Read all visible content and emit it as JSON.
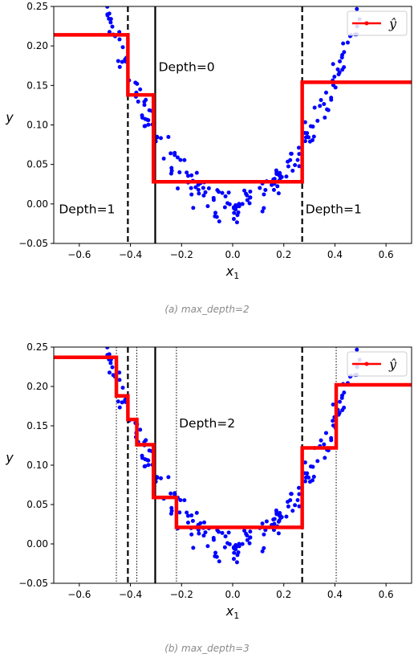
{
  "chart_data": [
    {
      "type": "scatter",
      "caption": "(a) max_depth=2",
      "xlabel": "x",
      "xlabel_sub": "1",
      "ylabel": "y",
      "xlim": [
        -0.7,
        0.7
      ],
      "ylim": [
        -0.05,
        0.25
      ],
      "xticks": [
        -0.6,
        -0.4,
        -0.2,
        0.0,
        0.2,
        0.4,
        0.6
      ],
      "xtick_labels": [
        "−0.6",
        "−0.4",
        "−0.2",
        "0.0",
        "0.2",
        "0.4",
        "0.6"
      ],
      "yticks": [
        -0.05,
        0.0,
        0.05,
        0.1,
        0.15,
        0.2,
        0.25
      ],
      "ytick_labels": [
        "−0.05",
        "0.00",
        "0.05",
        "0.10",
        "0.15",
        "0.20",
        "0.25"
      ],
      "legend": {
        "entries": [
          "ŷ"
        ],
        "placement": "top-right"
      },
      "series": [
        {
          "name": "ŷ",
          "kind": "step",
          "color": "#ff0000",
          "steps": [
            {
              "x0": -0.7,
              "x1": -0.41,
              "y": 0.214
            },
            {
              "x0": -0.41,
              "x1": -0.31,
              "y": 0.138
            },
            {
              "x0": -0.31,
              "x1": 0.272,
              "y": 0.028
            },
            {
              "x0": 0.272,
              "x1": 0.7,
              "y": 0.154
            }
          ]
        }
      ],
      "splits": [
        {
          "x": -0.303,
          "style": "solid"
        },
        {
          "x": -0.41,
          "style": "dashed"
        },
        {
          "x": 0.272,
          "style": "dashed"
        }
      ],
      "annotations": [
        {
          "text": "Depth=0",
          "x": -0.29,
          "y": 0.168
        },
        {
          "text": "Depth=1",
          "x": -0.68,
          "y": -0.012
        },
        {
          "text": "Depth=1",
          "x": 0.285,
          "y": -0.012
        }
      ],
      "points_color": "#0000ff"
    },
    {
      "type": "scatter",
      "caption": "(b) max_depth=3",
      "xlabel": "x",
      "xlabel_sub": "1",
      "ylabel": "y",
      "xlim": [
        -0.7,
        0.7
      ],
      "ylim": [
        -0.05,
        0.25
      ],
      "xticks": [
        -0.6,
        -0.4,
        -0.2,
        0.0,
        0.2,
        0.4,
        0.6
      ],
      "xtick_labels": [
        "−0.6",
        "−0.4",
        "−0.2",
        "0.0",
        "0.2",
        "0.4",
        "0.6"
      ],
      "yticks": [
        -0.05,
        0.0,
        0.05,
        0.1,
        0.15,
        0.2,
        0.25
      ],
      "ytick_labels": [
        "−0.05",
        "0.00",
        "0.05",
        "0.10",
        "0.15",
        "0.20",
        "0.25"
      ],
      "legend": {
        "entries": [
          "ŷ"
        ],
        "placement": "top-right"
      },
      "series": [
        {
          "name": "ŷ",
          "kind": "step",
          "color": "#ff0000",
          "steps": [
            {
              "x0": -0.7,
              "x1": -0.455,
              "y": 0.237
            },
            {
              "x0": -0.455,
              "x1": -0.41,
              "y": 0.188
            },
            {
              "x0": -0.41,
              "x1": -0.375,
              "y": 0.158
            },
            {
              "x0": -0.375,
              "x1": -0.31,
              "y": 0.126
            },
            {
              "x0": -0.31,
              "x1": -0.22,
              "y": 0.059
            },
            {
              "x0": -0.22,
              "x1": 0.272,
              "y": 0.021
            },
            {
              "x0": 0.272,
              "x1": 0.405,
              "y": 0.122
            },
            {
              "x0": 0.405,
              "x1": 0.7,
              "y": 0.202
            }
          ]
        }
      ],
      "splits": [
        {
          "x": -0.303,
          "style": "solid"
        },
        {
          "x": -0.41,
          "style": "dashed"
        },
        {
          "x": 0.272,
          "style": "dashed"
        },
        {
          "x": -0.455,
          "style": "dotted"
        },
        {
          "x": -0.375,
          "style": "dotted"
        },
        {
          "x": -0.22,
          "style": "dotted"
        },
        {
          "x": 0.405,
          "style": "dotted"
        }
      ],
      "annotations": [
        {
          "text": "Depth=2",
          "x": -0.21,
          "y": 0.148
        }
      ],
      "points_color": "#0000ff"
    }
  ]
}
